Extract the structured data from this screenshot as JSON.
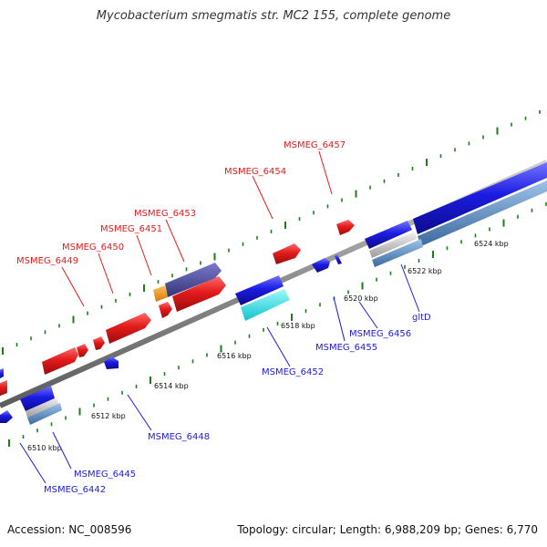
{
  "title": "Mycobacterium smegmatis str. MC2 155, complete genome",
  "footer": {
    "accession": "Accession: NC_008596",
    "topology": "Topology: circular; Length: 6,988,209 bp; Genes: 6,770"
  },
  "colors": {
    "forward": "#e31b1b",
    "reverse": "#1b1be3",
    "backbone": "#8c8c8c",
    "tick": "#1a7f1a",
    "tick_alt": "#2a8f2a",
    "orange": "#f7930f",
    "slate": "#4a4a9a",
    "cyan": "#18e0e8",
    "steel": "#5f8fc2",
    "silver": "#bdbdbd"
  },
  "scale_labels": [
    "6510 kbp",
    "6512 kbp",
    "6514 kbp",
    "6516 kbp",
    "6518 kbp",
    "6520 kbp",
    "6522 kbp",
    "6524 kbp"
  ],
  "forward_labels": [
    "MSMEG_6449",
    "MSMEG_6450",
    "MSMEG_6451",
    "MSMEG_6453",
    "MSMEG_6454",
    "MSMEG_6457"
  ],
  "reverse_labels": [
    "MSMEG_6442",
    "MSMEG_6445",
    "MSMEG_6448",
    "MSMEG_6452",
    "MSMEG_6455",
    "MSMEG_6456",
    "gltD"
  ]
}
